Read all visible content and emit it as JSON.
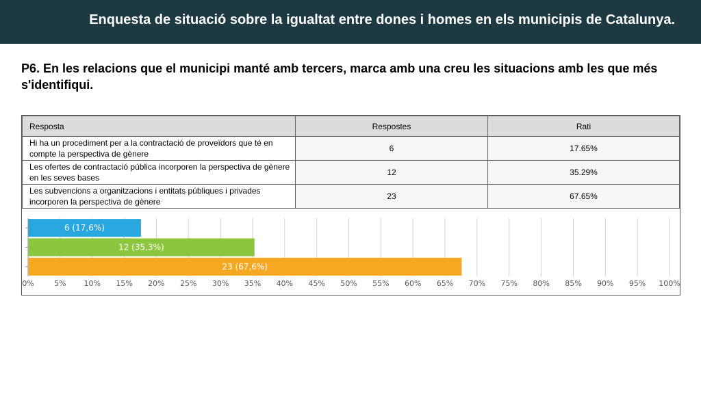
{
  "header": {
    "title": "Enquesta de situació sobre la  igualtat entre dones i homes en els municipis de Catalunya."
  },
  "question": "P6. En les relacions que el municipi manté amb tercers, marca amb una creu les situacions amb les que més s'identifiqui.",
  "table": {
    "headers": [
      "Resposta",
      "Respostes",
      "Rati"
    ],
    "rows": [
      {
        "answer": "Hi ha un procediment per a la contractació de proveïdors que té en compte la perspectiva de gènere",
        "count": "6",
        "ratio": "17.65%"
      },
      {
        "answer": "Les ofertes de contractació pública incorporen la perspectiva de gènere en les seves bases",
        "count": "12",
        "ratio": "35.29%"
      },
      {
        "answer": "Les subvencions a organitzacions i entitats públiques i privades incorporen la perspectiva de gènere",
        "count": "23",
        "ratio": "67.65%"
      }
    ]
  },
  "chart_data": {
    "type": "bar",
    "orientation": "horizontal",
    "categories": [
      "Hi ha un procediment per a la contractació de proveïdors que té en compte la perspectiva de gènere",
      "Les ofertes de contractació pública incorporen la perspectiva de gènere en les seves bases",
      "Les subvencions a organitzacions i entitats públiques i privades incorporen la perspectiva de gènere"
    ],
    "values": [
      17.6,
      35.3,
      67.6
    ],
    "labels": [
      "6 (17,6%)",
      "12 (35,3%)",
      "23 (67,6%)"
    ],
    "colors": [
      "#29a7df",
      "#8cc63f",
      "#f7a823"
    ],
    "xlim": [
      0,
      100
    ],
    "ticks": [
      "0%",
      "5%",
      "10%",
      "15%",
      "20%",
      "25%",
      "30%",
      "35%",
      "40%",
      "45%",
      "50%",
      "55%",
      "60%",
      "65%",
      "70%",
      "75%",
      "80%",
      "85%",
      "90%",
      "95%",
      "100%"
    ],
    "grid": true,
    "title": "",
    "xlabel": "",
    "ylabel": ""
  }
}
